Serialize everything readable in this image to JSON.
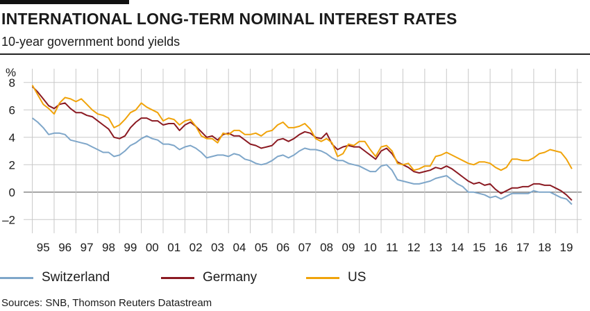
{
  "header": {
    "title": "INTERNATIONAL LONG-TERM NOMINAL INTEREST RATES",
    "subtitle": "10-year government bond yields"
  },
  "source": "Sources: SNB, Thomson Reuters Datastream",
  "colors": {
    "Switzerland": "#7ea6c9",
    "Germany": "#8b1a22",
    "US": "#f0a30a",
    "grid": "#c8c8c8",
    "zero": "#888888"
  },
  "chart_data": {
    "type": "line",
    "title": "INTERNATIONAL LONG-TERM NOMINAL INTEREST RATES",
    "subtitle": "10-year government bond yields",
    "ylabel": "%",
    "xlabel": "",
    "ylim": [
      -3,
      9
    ],
    "yticks": [
      -2,
      0,
      2,
      4,
      6,
      8
    ],
    "xlim": [
      1994.6,
      2020.2
    ],
    "xtick_labels": [
      "95",
      "96",
      "97",
      "98",
      "99",
      "00",
      "01",
      "02",
      "03",
      "04",
      "05",
      "06",
      "07",
      "08",
      "09",
      "10",
      "11",
      "12",
      "13",
      "14",
      "15",
      "16",
      "17",
      "18",
      "19"
    ],
    "grid": true,
    "legend_position": "bottom",
    "x": [
      1995.0,
      1995.25,
      1995.5,
      1995.75,
      1996.0,
      1996.25,
      1996.5,
      1996.75,
      1997.0,
      1997.25,
      1997.5,
      1997.75,
      1998.0,
      1998.25,
      1998.5,
      1998.75,
      1999.0,
      1999.25,
      1999.5,
      1999.75,
      2000.0,
      2000.25,
      2000.5,
      2000.75,
      2001.0,
      2001.25,
      2001.5,
      2001.75,
      2002.0,
      2002.25,
      2002.5,
      2002.75,
      2003.0,
      2003.25,
      2003.5,
      2003.75,
      2004.0,
      2004.25,
      2004.5,
      2004.75,
      2005.0,
      2005.25,
      2005.5,
      2005.75,
      2006.0,
      2006.25,
      2006.5,
      2006.75,
      2007.0,
      2007.25,
      2007.5,
      2007.75,
      2008.0,
      2008.25,
      2008.5,
      2008.75,
      2009.0,
      2009.25,
      2009.5,
      2009.75,
      2010.0,
      2010.25,
      2010.5,
      2010.75,
      2011.0,
      2011.25,
      2011.5,
      2011.75,
      2012.0,
      2012.25,
      2012.5,
      2012.75,
      2013.0,
      2013.25,
      2013.5,
      2013.75,
      2014.0,
      2014.25,
      2014.5,
      2014.75,
      2015.0,
      2015.25,
      2015.5,
      2015.75,
      2016.0,
      2016.25,
      2016.5,
      2016.75,
      2017.0,
      2017.25,
      2017.5,
      2017.75,
      2018.0,
      2018.25,
      2018.5,
      2018.75,
      2019.0,
      2019.25,
      2019.5,
      2019.75
    ],
    "series": [
      {
        "name": "Switzerland",
        "values": [
          5.4,
          5.1,
          4.7,
          4.2,
          4.3,
          4.3,
          4.2,
          3.8,
          3.7,
          3.6,
          3.5,
          3.3,
          3.1,
          2.9,
          2.9,
          2.6,
          2.7,
          3.0,
          3.4,
          3.6,
          3.9,
          4.1,
          3.9,
          3.8,
          3.5,
          3.5,
          3.4,
          3.1,
          3.3,
          3.4,
          3.2,
          2.9,
          2.5,
          2.6,
          2.7,
          2.7,
          2.6,
          2.8,
          2.7,
          2.4,
          2.3,
          2.1,
          2.0,
          2.1,
          2.3,
          2.6,
          2.7,
          2.5,
          2.7,
          3.0,
          3.2,
          3.1,
          3.1,
          3.0,
          2.8,
          2.5,
          2.3,
          2.3,
          2.1,
          2.0,
          1.9,
          1.7,
          1.5,
          1.5,
          1.9,
          2.0,
          1.6,
          0.9,
          0.8,
          0.7,
          0.6,
          0.6,
          0.7,
          0.8,
          1.0,
          1.1,
          1.2,
          0.9,
          0.6,
          0.4,
          0.0,
          0.0,
          -0.1,
          -0.2,
          -0.4,
          -0.3,
          -0.5,
          -0.3,
          -0.1,
          -0.1,
          -0.1,
          -0.1,
          0.1,
          0.0,
          0.0,
          0.0,
          -0.2,
          -0.4,
          -0.5,
          -0.9
        ]
      },
      {
        "name": "Germany",
        "values": [
          7.7,
          7.3,
          6.8,
          6.3,
          6.1,
          6.4,
          6.5,
          6.1,
          5.8,
          5.8,
          5.6,
          5.5,
          5.2,
          4.9,
          4.6,
          4.0,
          3.9,
          4.1,
          4.7,
          5.1,
          5.4,
          5.4,
          5.2,
          5.2,
          4.9,
          5.0,
          5.0,
          4.5,
          4.9,
          5.1,
          4.8,
          4.4,
          4.0,
          4.1,
          3.8,
          4.2,
          4.3,
          4.1,
          4.1,
          3.8,
          3.5,
          3.4,
          3.2,
          3.3,
          3.4,
          3.8,
          3.9,
          3.7,
          3.9,
          4.2,
          4.4,
          4.3,
          4.0,
          3.9,
          4.3,
          3.5,
          3.1,
          3.3,
          3.4,
          3.3,
          3.3,
          3.0,
          2.7,
          2.4,
          3.0,
          3.2,
          2.8,
          2.2,
          2.0,
          1.8,
          1.5,
          1.4,
          1.5,
          1.6,
          1.8,
          1.7,
          1.9,
          1.7,
          1.4,
          1.1,
          0.8,
          0.6,
          0.7,
          0.5,
          0.6,
          0.2,
          -0.1,
          0.1,
          0.3,
          0.3,
          0.4,
          0.4,
          0.6,
          0.6,
          0.5,
          0.5,
          0.3,
          0.1,
          -0.2,
          -0.6
        ]
      },
      {
        "name": "US",
        "values": [
          7.8,
          7.1,
          6.4,
          6.1,
          5.7,
          6.5,
          6.9,
          6.8,
          6.6,
          6.8,
          6.4,
          6.0,
          5.7,
          5.6,
          5.4,
          4.7,
          4.9,
          5.3,
          5.8,
          6.0,
          6.5,
          6.2,
          6.0,
          5.8,
          5.2,
          5.4,
          5.3,
          4.9,
          5.2,
          5.3,
          4.8,
          4.1,
          3.9,
          3.9,
          3.6,
          4.3,
          4.2,
          4.5,
          4.5,
          4.2,
          4.2,
          4.3,
          4.1,
          4.4,
          4.5,
          4.9,
          5.1,
          4.7,
          4.7,
          4.8,
          5.0,
          4.6,
          3.9,
          3.7,
          3.9,
          3.6,
          2.6,
          2.8,
          3.5,
          3.4,
          3.7,
          3.7,
          3.1,
          2.6,
          3.3,
          3.4,
          3.0,
          2.1,
          2.0,
          2.1,
          1.6,
          1.7,
          1.9,
          1.9,
          2.6,
          2.7,
          2.9,
          2.7,
          2.5,
          2.3,
          2.1,
          2.0,
          2.2,
          2.2,
          2.1,
          1.8,
          1.6,
          1.8,
          2.4,
          2.4,
          2.3,
          2.3,
          2.5,
          2.8,
          2.9,
          3.1,
          3.0,
          2.9,
          2.4,
          1.7
        ]
      }
    ]
  }
}
